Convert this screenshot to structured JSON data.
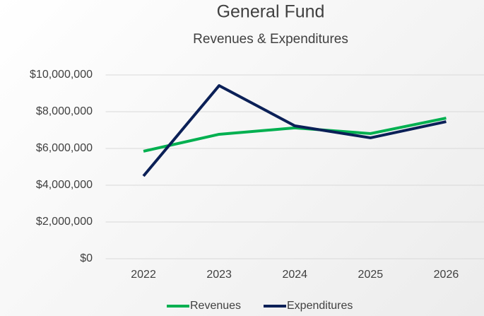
{
  "chart_data": {
    "type": "line",
    "title": "General Fund",
    "subtitle": "Revenues & Expenditures",
    "categories": [
      "2022",
      "2023",
      "2024",
      "2025",
      "2026"
    ],
    "series": [
      {
        "name": "Revenues",
        "color": "#00b050",
        "values": [
          5850000,
          6770000,
          7120000,
          6810000,
          7650000
        ]
      },
      {
        "name": "Expenditures",
        "color": "#0b2057",
        "values": [
          4500000,
          9420000,
          7230000,
          6580000,
          7460000
        ]
      }
    ],
    "ylim": [
      0,
      10000000
    ],
    "yticks": [
      {
        "value": 0,
        "label": "$0"
      },
      {
        "value": 2000000,
        "label": "$2,000,000"
      },
      {
        "value": 4000000,
        "label": "$4,000,000"
      },
      {
        "value": 6000000,
        "label": "$6,000,000"
      },
      {
        "value": 8000000,
        "label": "$8,000,000"
      },
      {
        "value": 10000000,
        "label": "$10,000,000"
      }
    ],
    "grid": true,
    "legend": "bottom"
  }
}
